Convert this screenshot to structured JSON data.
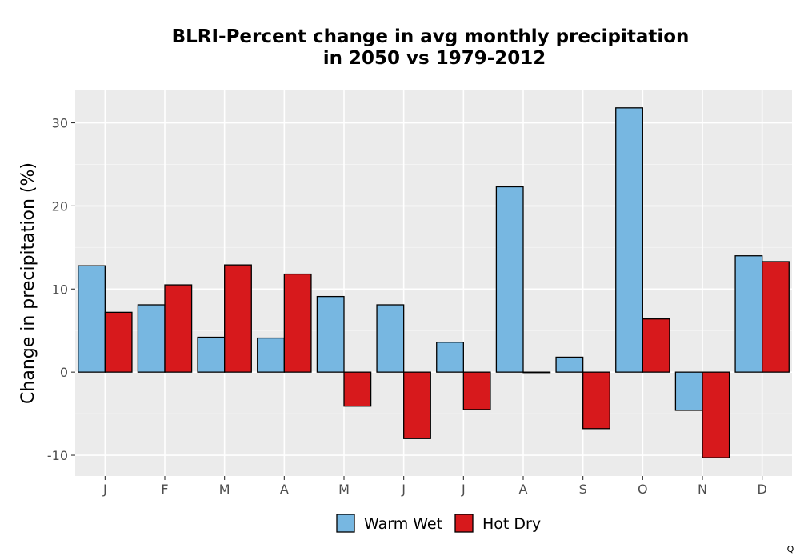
{
  "chart_data": {
    "type": "bar",
    "title_lines": [
      "BLRI-Percent change in avg monthly precipitation",
      "in 2050 vs 1979-2012"
    ],
    "xlabel": "",
    "ylabel": "Change in precipitation (%)",
    "categories": [
      "J",
      "F",
      "M",
      "A",
      "M",
      "J",
      "J",
      "A",
      "S",
      "O",
      "N",
      "D"
    ],
    "series": [
      {
        "name": "Warm Wet",
        "color": "#77b7e1",
        "values": [
          12.8,
          8.1,
          4.2,
          4.1,
          9.1,
          8.1,
          3.6,
          22.3,
          1.8,
          31.8,
          -4.6,
          14.0
        ]
      },
      {
        "name": "Hot Dry",
        "color": "#d7191c",
        "values": [
          7.2,
          10.5,
          12.9,
          11.8,
          -4.1,
          -8.0,
          -4.5,
          0.0,
          -6.8,
          6.4,
          -10.3,
          13.3
        ]
      }
    ],
    "ylim": [
      -12.5,
      33.9
    ],
    "yticks": [
      -10,
      0,
      10,
      20,
      30
    ],
    "ytick_labels": [
      "-10",
      "0",
      "10",
      "20",
      "30"
    ],
    "grid": true,
    "legend_position": "bottom",
    "panel_color": "#ebebeb",
    "corner_text": "Q"
  }
}
